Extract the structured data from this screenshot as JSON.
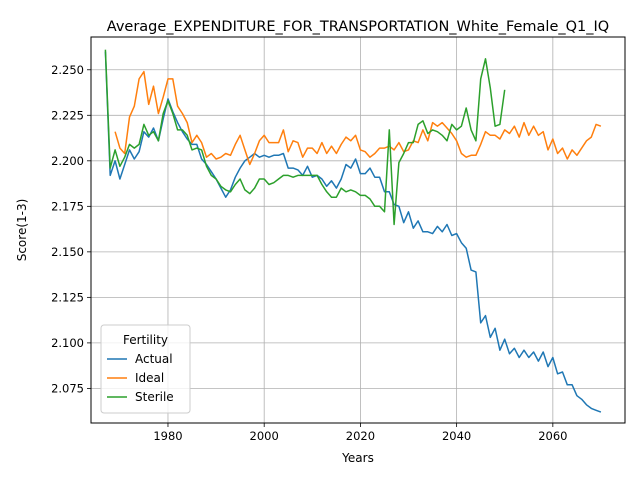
{
  "chart_data": {
    "type": "line",
    "title": "Average_EXPENDITURE_FOR_TRANSPORTATION_White_Female_Q1_IQ",
    "xlabel": "Years",
    "ylabel": "Score(1-3)",
    "xlim": [
      1964,
      2075
    ],
    "ylim": [
      2.056,
      2.268
    ],
    "xticks": [
      1980,
      2000,
      2020,
      2040,
      2060
    ],
    "xtick_labels": [
      "1980",
      "2000",
      "2020",
      "2040",
      "2060"
    ],
    "yticks": [
      2.075,
      2.1,
      2.125,
      2.15,
      2.175,
      2.2,
      2.225,
      2.25
    ],
    "ytick_labels": [
      "2.075",
      "2.100",
      "2.125",
      "2.150",
      "2.175",
      "2.200",
      "2.225",
      "2.250"
    ],
    "grid": true,
    "legend": {
      "title": "Fertility",
      "placement": "lower-left"
    },
    "series": [
      {
        "name": "Actual",
        "color": "#1f77b4",
        "x": [
          1967,
          1968,
          1969,
          1970,
          1971,
          1972,
          1973,
          1974,
          1975,
          1976,
          1977,
          1978,
          1979,
          1980,
          1981,
          1982,
          1983,
          1984,
          1985,
          1986,
          1987,
          1988,
          1989,
          1990,
          1991,
          1992,
          1993,
          1994,
          1995,
          1996,
          1997,
          1998,
          1999,
          2000,
          2001,
          2002,
          2003,
          2004,
          2005,
          2006,
          2007,
          2008,
          2009,
          2010,
          2011,
          2012,
          2013,
          2014,
          2015,
          2016,
          2017,
          2018,
          2019,
          2020,
          2021,
          2022,
          2023,
          2024,
          2025,
          2026,
          2027,
          2028,
          2029,
          2030,
          2031,
          2032,
          2033,
          2034,
          2035,
          2036,
          2037,
          2038,
          2039,
          2040,
          2041,
          2042,
          2043,
          2044,
          2045,
          2046,
          2047,
          2048,
          2049,
          2050,
          2051,
          2052,
          2053,
          2054,
          2055,
          2056,
          2057,
          2058,
          2059,
          2060,
          2061,
          2062,
          2063,
          2064,
          2065,
          2066,
          2067,
          2068,
          2069,
          2070
        ],
        "y": [
          2.26,
          2.192,
          2.2,
          2.19,
          2.198,
          2.206,
          2.201,
          2.205,
          2.216,
          2.213,
          2.218,
          2.211,
          2.223,
          2.234,
          2.227,
          2.221,
          2.216,
          2.212,
          2.209,
          2.209,
          2.201,
          2.198,
          2.194,
          2.19,
          2.185,
          2.18,
          2.184,
          2.191,
          2.196,
          2.2,
          2.202,
          2.204,
          2.202,
          2.203,
          2.202,
          2.203,
          2.203,
          2.204,
          2.196,
          2.196,
          2.195,
          2.192,
          2.197,
          2.191,
          2.192,
          2.19,
          2.186,
          2.189,
          2.185,
          2.19,
          2.198,
          2.196,
          2.201,
          2.193,
          2.193,
          2.196,
          2.191,
          2.191,
          2.183,
          2.183,
          2.176,
          2.175,
          2.166,
          2.172,
          2.163,
          2.167,
          2.161,
          2.161,
          2.16,
          2.164,
          2.161,
          2.165,
          2.159,
          2.16,
          2.155,
          2.152,
          2.14,
          2.139,
          2.111,
          2.115,
          2.103,
          2.108,
          2.096,
          2.102,
          2.094,
          2.097,
          2.092,
          2.096,
          2.092,
          2.095,
          2.09,
          2.095,
          2.087,
          2.092,
          2.083,
          2.084,
          2.077,
          2.077,
          2.071,
          2.069,
          2.066,
          2.064,
          2.063,
          2.062
        ]
      },
      {
        "name": "Ideal",
        "color": "#ff7f0e",
        "x": [
          1969,
          1970,
          1971,
          1972,
          1973,
          1974,
          1975,
          1976,
          1977,
          1978,
          1979,
          1980,
          1981,
          1982,
          1983,
          1984,
          1985,
          1986,
          1987,
          1988,
          1989,
          1990,
          1991,
          1992,
          1993,
          1994,
          1995,
          1996,
          1997,
          1998,
          1999,
          2000,
          2001,
          2002,
          2003,
          2004,
          2005,
          2006,
          2007,
          2008,
          2009,
          2010,
          2011,
          2012,
          2013,
          2014,
          2015,
          2016,
          2017,
          2018,
          2019,
          2020,
          2021,
          2022,
          2023,
          2024,
          2025,
          2026,
          2027,
          2028,
          2029,
          2030,
          2031,
          2032,
          2033,
          2034,
          2035,
          2036,
          2037,
          2038,
          2039,
          2040,
          2041,
          2042,
          2043,
          2044,
          2045,
          2046,
          2047,
          2048,
          2049,
          2050,
          2051,
          2052,
          2053,
          2054,
          2055,
          2056,
          2057,
          2058,
          2059,
          2060,
          2061,
          2062,
          2063,
          2064,
          2065,
          2066,
          2067,
          2068,
          2069,
          2070
        ],
        "y": [
          2.216,
          2.207,
          2.204,
          2.224,
          2.23,
          2.245,
          2.249,
          2.231,
          2.241,
          2.226,
          2.235,
          2.245,
          2.245,
          2.23,
          2.226,
          2.221,
          2.21,
          2.214,
          2.21,
          2.202,
          2.204,
          2.201,
          2.202,
          2.204,
          2.203,
          2.209,
          2.214,
          2.206,
          2.198,
          2.204,
          2.211,
          2.214,
          2.21,
          2.21,
          2.21,
          2.217,
          2.205,
          2.211,
          2.21,
          2.202,
          2.207,
          2.207,
          2.204,
          2.21,
          2.204,
          2.208,
          2.204,
          2.209,
          2.213,
          2.211,
          2.214,
          2.206,
          2.205,
          2.202,
          2.204,
          2.207,
          2.207,
          2.208,
          2.206,
          2.21,
          2.205,
          2.206,
          2.211,
          2.21,
          2.217,
          2.211,
          2.221,
          2.219,
          2.221,
          2.218,
          2.215,
          2.211,
          2.204,
          2.202,
          2.203,
          2.203,
          2.209,
          2.216,
          2.214,
          2.214,
          2.212,
          2.217,
          2.215,
          2.219,
          2.213,
          2.221,
          2.214,
          2.219,
          2.214,
          2.216,
          2.206,
          2.212,
          2.204,
          2.207,
          2.201,
          2.206,
          2.203,
          2.207,
          2.211,
          2.213,
          2.22,
          2.219
        ]
      },
      {
        "name": "Sterile",
        "color": "#2ca02c",
        "x": [
          1967,
          1968,
          1969,
          1970,
          1971,
          1972,
          1973,
          1974,
          1975,
          1976,
          1977,
          1978,
          1979,
          1980,
          1981,
          1982,
          1983,
          1984,
          1985,
          1986,
          1987,
          1988,
          1989,
          1990,
          1991,
          1992,
          1993,
          1994,
          1995,
          1996,
          1997,
          1998,
          1999,
          2000,
          2001,
          2002,
          2003,
          2004,
          2005,
          2006,
          2007,
          2008,
          2009,
          2010,
          2011,
          2012,
          2013,
          2014,
          2015,
          2016,
          2017,
          2018,
          2019,
          2020,
          2021,
          2022,
          2023,
          2024,
          2025,
          2026,
          2027,
          2028,
          2029,
          2030,
          2031,
          2032,
          2033,
          2034,
          2035,
          2036,
          2037,
          2038,
          2039,
          2040,
          2041,
          2042,
          2043,
          2044,
          2045,
          2046,
          2047,
          2048,
          2049,
          2050
        ],
        "y": [
          2.261,
          2.196,
          2.206,
          2.197,
          2.202,
          2.209,
          2.207,
          2.209,
          2.22,
          2.214,
          2.216,
          2.211,
          2.226,
          2.233,
          2.226,
          2.217,
          2.217,
          2.214,
          2.206,
          2.207,
          2.206,
          2.197,
          2.192,
          2.19,
          2.186,
          2.184,
          2.183,
          2.187,
          2.19,
          2.184,
          2.182,
          2.185,
          2.19,
          2.19,
          2.187,
          2.188,
          2.19,
          2.192,
          2.192,
          2.191,
          2.192,
          2.192,
          2.192,
          2.192,
          2.192,
          2.187,
          2.183,
          2.18,
          2.18,
          2.185,
          2.183,
          2.184,
          2.183,
          2.181,
          2.181,
          2.179,
          2.175,
          2.175,
          2.172,
          2.217,
          2.165,
          2.199,
          2.204,
          2.21,
          2.21,
          2.22,
          2.222,
          2.215,
          2.217,
          2.216,
          2.214,
          2.211,
          2.22,
          2.217,
          2.219,
          2.229,
          2.217,
          2.211,
          2.245,
          2.256,
          2.24,
          2.219,
          2.22,
          2.239
        ]
      }
    ]
  }
}
